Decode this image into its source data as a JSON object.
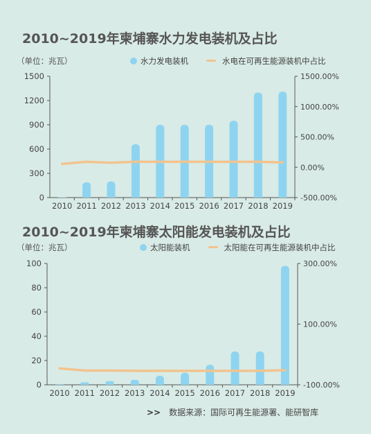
{
  "source": {
    "arrows": ">>",
    "text": "数据来源：国际可再生能源署、能研智库"
  },
  "chart_data": [
    {
      "type": "bar",
      "title": "2010~2019年柬埔寨水力发电装机及占比",
      "unit": "（单位：兆瓦）",
      "categories": [
        "2010",
        "2011",
        "2012",
        "2013",
        "2014",
        "2015",
        "2016",
        "2017",
        "2018",
        "2019"
      ],
      "series": [
        {
          "name": "水力发电装机",
          "type": "bar",
          "axis": "left",
          "color": "#8ed4f0",
          "values": [
            0,
            190,
            200,
            660,
            900,
            900,
            900,
            950,
            1300,
            1310
          ]
        },
        {
          "name": "水电在可再生能源装机中占比",
          "type": "line",
          "axis": "right",
          "color": "#f2c38e",
          "values": [
            55,
            90,
            75,
            90,
            90,
            90,
            90,
            90,
            90,
            80
          ]
        }
      ],
      "left_axis": {
        "ylim": [
          0,
          1500
        ],
        "ticks": [
          "0",
          "300",
          "600",
          "900",
          "1200",
          "1500"
        ]
      },
      "right_axis": {
        "ylim": [
          -500,
          1500
        ],
        "ticks": [
          "-500.00%",
          "0.00%",
          "500.00%",
          "1000.00%",
          "1500.00%"
        ]
      }
    },
    {
      "type": "bar",
      "title": "2010~2019年柬埔寨太阳能发电装机及占比",
      "unit": "（单位：兆瓦）",
      "categories": [
        "2010",
        "2011",
        "2012",
        "2013",
        "2014",
        "2015",
        "2016",
        "2017",
        "2018",
        "2019"
      ],
      "series": [
        {
          "name": "太阳能装机",
          "type": "bar",
          "axis": "left",
          "color": "#8ed4f0",
          "values": [
            0.5,
            2,
            3,
            4,
            7.5,
            10,
            16.5,
            27.5,
            27.5,
            98
          ]
        },
        {
          "name": "太阳能在可再生能源装机中占比",
          "type": "line",
          "axis": "right",
          "color": "#f2c38e",
          "values": [
            -46,
            -53,
            -53,
            -54,
            -54,
            -54,
            -54,
            -54,
            -54,
            -52
          ]
        }
      ],
      "left_axis": {
        "ylim": [
          0,
          100
        ],
        "ticks": [
          "0",
          "20",
          "40",
          "60",
          "80",
          "100"
        ]
      },
      "right_axis": {
        "ylim": [
          -100,
          300
        ],
        "ticks": [
          "-100.00%",
          "100.00%",
          "300.00%"
        ]
      }
    }
  ]
}
